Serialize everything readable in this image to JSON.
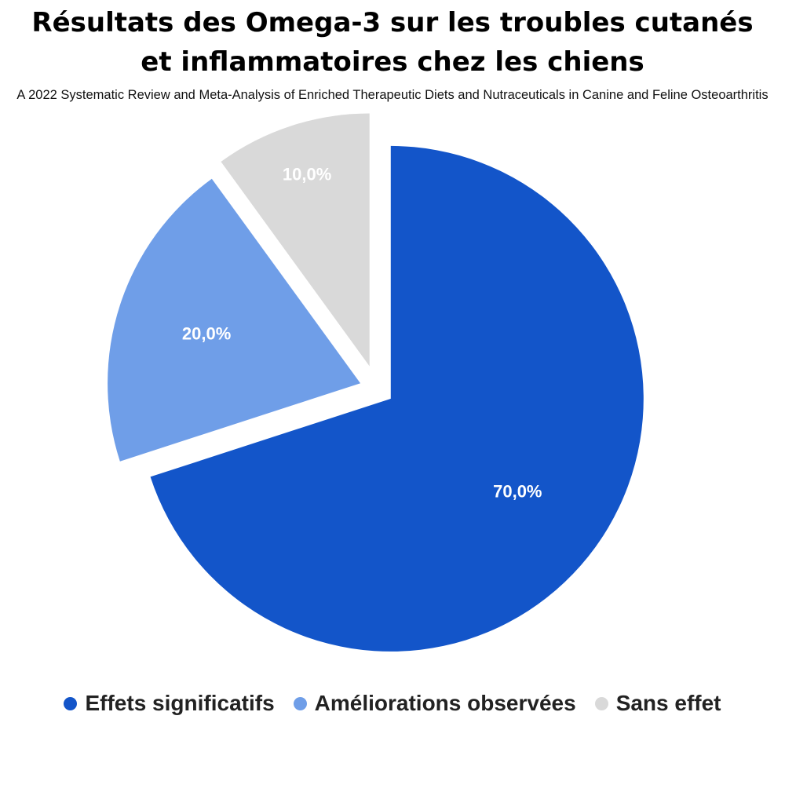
{
  "chart_data": {
    "type": "pie",
    "title": "Résultats des Omega-3 sur les troubles cutanés et inflammatoires chez les chiens",
    "subtitle": "A 2022 Systematic Review and Meta-Analysis of Enriched Therapeutic Diets and Nutraceuticals in Canine and Feline Osteoarthritis",
    "legend_position": "bottom",
    "categories": [
      "Effets significatifs",
      "Améliorations observées",
      "Sans effet"
    ],
    "values": [
      70.0,
      20.0,
      10.0
    ],
    "data_labels": [
      "70,0%",
      "20,0%",
      "10,0%"
    ],
    "colors": [
      "#1355c9",
      "#6f9ee8",
      "#d9d9d9"
    ]
  }
}
